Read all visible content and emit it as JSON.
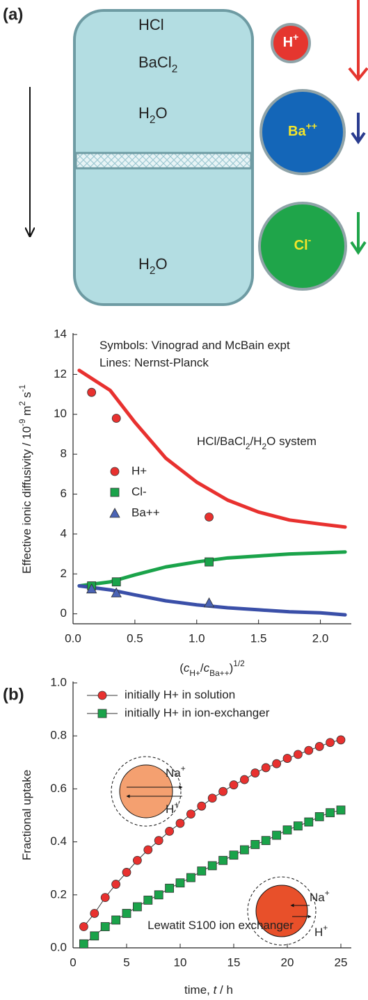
{
  "diagram": {
    "label": "(a)",
    "top_species": [
      [
        {
          "text": "HCl"
        }
      ],
      [
        {
          "text": "BaCl"
        },
        {
          "text": "2",
          "sub": true
        }
      ],
      [
        {
          "text": "H"
        },
        {
          "text": "2",
          "sub": true
        },
        {
          "text": "O"
        }
      ]
    ],
    "bottom_species": [
      [
        {
          "text": "H"
        },
        {
          "text": "2",
          "sub": true
        },
        {
          "text": "O"
        }
      ]
    ],
    "ions": [
      [
        {
          "text": "H"
        },
        {
          "text": "+",
          "sup": true
        }
      ],
      [
        {
          "text": "Ba"
        },
        {
          "text": "++",
          "sup": true
        }
      ],
      [
        {
          "text": "Cl"
        },
        {
          "text": "-",
          "sup": true
        }
      ]
    ]
  },
  "chart_data": [
    {
      "type": "line",
      "ylabel": [
        {
          "text": "Effective ionic diffusivity / 10"
        },
        {
          "text": "-9",
          "sup": true
        },
        {
          "text": " m"
        },
        {
          "text": "2",
          "sup": true
        },
        {
          "text": " s"
        },
        {
          "text": "-1",
          "sup": true
        }
      ],
      "xlabel": [
        {
          "text": "("
        },
        {
          "text": "c",
          "italic": true
        },
        {
          "text": "H+",
          "sub": true
        },
        {
          "text": "/"
        },
        {
          "text": "c",
          "italic": true
        },
        {
          "text": "Ba++",
          "sub": true
        },
        {
          "text": ")"
        },
        {
          "text": "1/2",
          "sup": true
        }
      ],
      "annotations": [
        [
          {
            "text": "Symbols: Vinograd and McBain expt"
          }
        ],
        [
          {
            "text": "Lines: Nernst-Planck"
          }
        ],
        [
          {
            "text": "HCl/BaCl"
          },
          {
            "text": "2",
            "sub": true
          },
          {
            "text": "/H"
          },
          {
            "text": "2",
            "sub": true
          },
          {
            "text": "O system"
          }
        ]
      ],
      "xlim": [
        0,
        2.25
      ],
      "xticks": [
        {
          "value": 0,
          "label": "0.0"
        },
        {
          "value": 0.5,
          "label": "0.5"
        },
        {
          "value": 1,
          "label": "1.0"
        },
        {
          "value": 1.5,
          "label": "1.5"
        },
        {
          "value": 2,
          "label": "2.0"
        }
      ],
      "ylim": [
        -0.5,
        14
      ],
      "yticks": [
        0,
        2,
        4,
        6,
        8,
        10,
        12,
        14
      ],
      "series": [
        {
          "style": "line",
          "color": "#e8312f",
          "x": [
            0.05,
            0.3,
            0.5,
            0.75,
            1.0,
            1.25,
            1.5,
            1.75,
            2.0,
            2.2
          ],
          "values": [
            12.2,
            11.2,
            9.6,
            7.8,
            6.6,
            5.7,
            5.1,
            4.7,
            4.5,
            4.35
          ]
        },
        {
          "style": "line",
          "color": "#1aa34a",
          "x": [
            0.05,
            0.3,
            0.5,
            0.75,
            1.0,
            1.25,
            1.5,
            1.75,
            2.0,
            2.2
          ],
          "values": [
            1.4,
            1.6,
            1.95,
            2.35,
            2.6,
            2.8,
            2.9,
            3.0,
            3.05,
            3.1
          ]
        },
        {
          "style": "line",
          "color": "#3a4fa8",
          "x": [
            0.05,
            0.3,
            0.5,
            0.75,
            1.0,
            1.25,
            1.5,
            1.75,
            2.0,
            2.2
          ],
          "values": [
            1.4,
            1.2,
            0.95,
            0.65,
            0.45,
            0.3,
            0.2,
            0.1,
            0.05,
            -0.05
          ]
        },
        {
          "style": "marker",
          "name": "H+",
          "marker": "circle",
          "color": "#e8312f",
          "x": [
            0.15,
            0.35,
            1.1
          ],
          "values": [
            11.1,
            9.8,
            4.85
          ]
        },
        {
          "style": "marker",
          "name": "Cl-",
          "marker": "square",
          "color": "#1aa34a",
          "x": [
            0.15,
            0.35,
            1.1
          ],
          "values": [
            1.4,
            1.6,
            2.6
          ]
        },
        {
          "style": "marker",
          "name": "Ba++",
          "marker": "triangle",
          "color": "#4a63b5",
          "x": [
            0.15,
            0.35,
            1.1
          ],
          "values": [
            1.25,
            1.05,
            0.55
          ]
        }
      ]
    },
    {
      "type": "line",
      "panel_label": "(b)",
      "ylabel": [
        {
          "text": "Fractional uptake"
        }
      ],
      "xlabel": [
        {
          "text": "time, "
        },
        {
          "text": "t",
          "italic": true
        },
        {
          "text": " / h"
        }
      ],
      "annotations": [
        [
          {
            "text": "Lewatit S100 ion exchanger"
          }
        ],
        [
          {
            "text": "Na"
          },
          {
            "text": "+",
            "sup": true
          }
        ],
        [
          {
            "text": "H"
          },
          {
            "text": "+",
            "sup": true
          }
        ],
        [
          {
            "text": "Na"
          },
          {
            "text": "+",
            "sup": true
          }
        ],
        [
          {
            "text": "H"
          },
          {
            "text": "+",
            "sup": true
          }
        ]
      ],
      "xlim": [
        0,
        25
      ],
      "xticks": [
        0,
        5,
        10,
        15,
        20,
        25
      ],
      "ylim": [
        0,
        1
      ],
      "yticks": [
        {
          "value": 0,
          "label": "0.0"
        },
        {
          "value": 0.2,
          "label": "0.2"
        },
        {
          "value": 0.4,
          "label": "0.4"
        },
        {
          "value": 0.6,
          "label": "0.6"
        },
        {
          "value": 0.8,
          "label": "0.8"
        },
        {
          "value": 1,
          "label": "1.0"
        }
      ],
      "x": [
        1,
        2,
        3,
        4,
        5,
        6,
        7,
        8,
        9,
        10,
        11,
        12,
        13,
        14,
        15,
        16,
        17,
        18,
        19,
        20,
        21,
        22,
        23,
        24,
        25
      ],
      "line_color": "#333333",
      "series": [
        {
          "name": "initially H+ in solution",
          "marker": "circle",
          "color": "#e8312f",
          "values": [
            0.08,
            0.13,
            0.19,
            0.24,
            0.285,
            0.33,
            0.37,
            0.405,
            0.44,
            0.47,
            0.505,
            0.535,
            0.565,
            0.59,
            0.615,
            0.635,
            0.66,
            0.68,
            0.695,
            0.715,
            0.73,
            0.745,
            0.76,
            0.775,
            0.785
          ]
        },
        {
          "name": "initially H+ in ion-exchanger",
          "marker": "square",
          "color": "#1aa34a",
          "values": [
            0.015,
            0.045,
            0.08,
            0.105,
            0.13,
            0.155,
            0.18,
            0.2,
            0.225,
            0.245,
            0.265,
            0.29,
            0.31,
            0.33,
            0.35,
            0.37,
            0.39,
            0.405,
            0.425,
            0.445,
            0.46,
            0.475,
            0.495,
            0.51,
            0.52
          ]
        }
      ]
    }
  ]
}
